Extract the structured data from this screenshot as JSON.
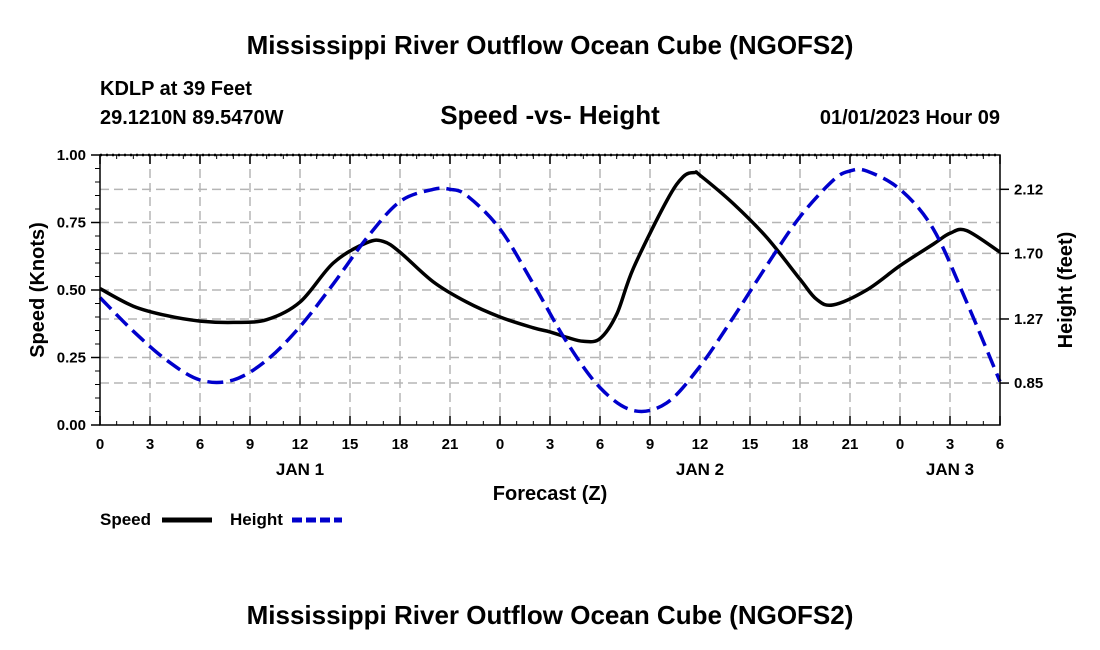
{
  "header": {
    "title": "Mississippi River Outflow Ocean Cube (NGOFS2)",
    "station": "KDLP at 39 Feet",
    "coords": "29.1210N  89.5470W",
    "subtitle": "Speed -vs- Height",
    "datetime": "01/01/2023 Hour 09"
  },
  "footer": {
    "title": "Mississippi River Outflow Ocean Cube (NGOFS2)"
  },
  "chart_data": {
    "type": "line",
    "title": "Speed -vs- Height",
    "xlabel": "Forecast (Z)",
    "ylabel": "Speed (Knots)",
    "y2label": "Height (feet)",
    "xlim": [
      0,
      54
    ],
    "ylim": [
      0,
      1.0
    ],
    "y2lim": [
      0.575,
      2.345
    ],
    "x_ticks": [
      0,
      3,
      6,
      9,
      12,
      15,
      18,
      21,
      24,
      27,
      30,
      33,
      36,
      39,
      42,
      45,
      48,
      51,
      54
    ],
    "x_tick_labels": [
      "0",
      "3",
      "6",
      "9",
      "12",
      "15",
      "18",
      "21",
      "0",
      "3",
      "6",
      "9",
      "12",
      "15",
      "18",
      "21",
      "0",
      "3",
      "6"
    ],
    "day_labels": [
      {
        "x": 12,
        "label": "JAN 1"
      },
      {
        "x": 36,
        "label": "JAN 2"
      },
      {
        "x": 51,
        "label": "JAN 3"
      }
    ],
    "y_ticks": [
      0.0,
      0.25,
      0.5,
      0.75,
      1.0
    ],
    "y_tick_labels": [
      "0.00",
      "0.25",
      "0.50",
      "0.75",
      "1.00"
    ],
    "y2_ticks": [
      0.85,
      1.27,
      1.7,
      2.12
    ],
    "y2_tick_labels": [
      "0.85",
      "1.27",
      "1.70",
      "2.12"
    ],
    "grid": true,
    "legend_position": "bottom-left",
    "series": [
      {
        "name": "Speed",
        "axis": "left",
        "color": "#000000",
        "style": "solid",
        "x": [
          0,
          2,
          4,
          6,
          8,
          10,
          12,
          14,
          16,
          17,
          18,
          20,
          22,
          24,
          26,
          27,
          28,
          29,
          30,
          31,
          32,
          34,
          35,
          35.7,
          36,
          38,
          40,
          42,
          43,
          44,
          46,
          48,
          50,
          51,
          52,
          54
        ],
        "y": [
          0.505,
          0.44,
          0.405,
          0.385,
          0.38,
          0.39,
          0.455,
          0.6,
          0.675,
          0.68,
          0.64,
          0.53,
          0.455,
          0.4,
          0.36,
          0.345,
          0.325,
          0.31,
          0.32,
          0.41,
          0.58,
          0.83,
          0.92,
          0.935,
          0.925,
          0.82,
          0.695,
          0.54,
          0.465,
          0.445,
          0.5,
          0.59,
          0.67,
          0.71,
          0.72,
          0.64
        ]
      },
      {
        "name": "Height",
        "axis": "right",
        "color": "#0000CC",
        "style": "dashed",
        "x": [
          0,
          2,
          4,
          6,
          8,
          10,
          12,
          14,
          16,
          18,
          20,
          21,
          22,
          24,
          26,
          28,
          30,
          32,
          34,
          36,
          38,
          40,
          42,
          44,
          45,
          46,
          48,
          50,
          52,
          54
        ],
        "y": [
          1.41,
          1.19,
          1.0,
          0.87,
          0.87,
          1.0,
          1.22,
          1.5,
          1.8,
          2.04,
          2.12,
          2.12,
          2.08,
          1.86,
          1.5,
          1.12,
          0.82,
          0.67,
          0.72,
          0.96,
          1.28,
          1.62,
          1.94,
          2.18,
          2.24,
          2.24,
          2.12,
          1.86,
          1.38,
          0.86
        ]
      }
    ]
  }
}
